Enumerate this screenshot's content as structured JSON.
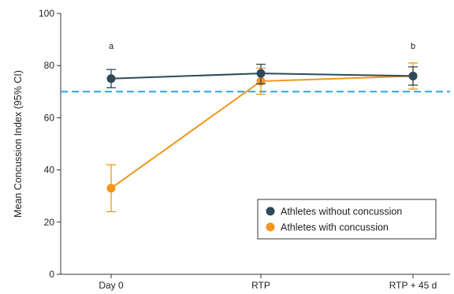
{
  "chart_data": {
    "type": "line",
    "categories": [
      "Day 0",
      "RTP",
      "RTP + 45 d"
    ],
    "ylabel": "Mean Concussion Index (95% CI)",
    "xlabel": "",
    "ylim": [
      0,
      100
    ],
    "yticks": [
      0,
      20,
      40,
      60,
      80,
      100
    ],
    "reference_line": {
      "y": 70,
      "style": "dashed",
      "color": "#29a8e0"
    },
    "series": [
      {
        "name": "Athletes without concussion",
        "color": "#2e4a5a",
        "values": [
          75,
          77,
          76
        ],
        "ci_low": [
          71.5,
          73,
          72.5
        ],
        "ci_high": [
          78.5,
          80.5,
          79.5
        ]
      },
      {
        "name": "Athletes with concussion",
        "color": "#f2951d",
        "values": [
          33,
          74,
          76
        ],
        "ci_low": [
          24,
          69,
          71
        ],
        "ci_high": [
          42,
          79,
          81
        ]
      }
    ],
    "annotations": [
      {
        "text": "a",
        "category": "Day 0",
        "y": 84
      },
      {
        "text": "b",
        "category": "RTP + 45 d",
        "y": 84
      }
    ],
    "legend_position": "bottom-right",
    "grid": false
  }
}
